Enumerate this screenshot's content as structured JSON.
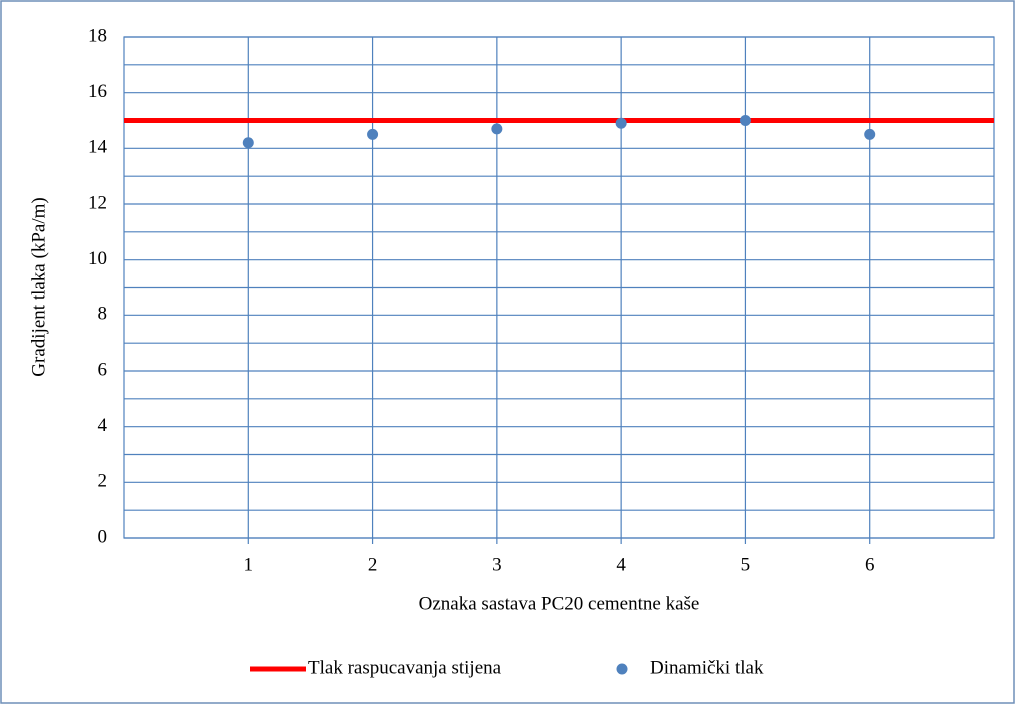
{
  "chart_data": {
    "type": "scatter",
    "x_label": "Oznaka sastava PC20 cementne kaše",
    "y_label": "Gradijent tlaka (kPa/m)",
    "xlim": [
      0,
      7
    ],
    "xticks": [
      1,
      2,
      3,
      4,
      5,
      6
    ],
    "ylim": [
      0,
      18
    ],
    "yticks": [
      0,
      2,
      4,
      6,
      8,
      10,
      12,
      14,
      16,
      18
    ],
    "yminorticks": [
      1,
      3,
      5,
      7,
      9,
      11,
      13,
      15,
      17
    ],
    "grid": true,
    "grid_color": "#4f81bd",
    "legend": "bottom",
    "series": [
      {
        "name": "Tlak raspucavanja stijena",
        "type": "line",
        "color": "#ff0000",
        "x": [
          0,
          7
        ],
        "values": [
          15,
          15
        ]
      },
      {
        "name": "Dinamički tlak",
        "type": "scatter",
        "color": "#4f81bd",
        "x": [
          1,
          2,
          3,
          4,
          5,
          6
        ],
        "values": [
          14.2,
          14.5,
          14.7,
          14.9,
          15.0,
          14.5
        ]
      }
    ]
  }
}
